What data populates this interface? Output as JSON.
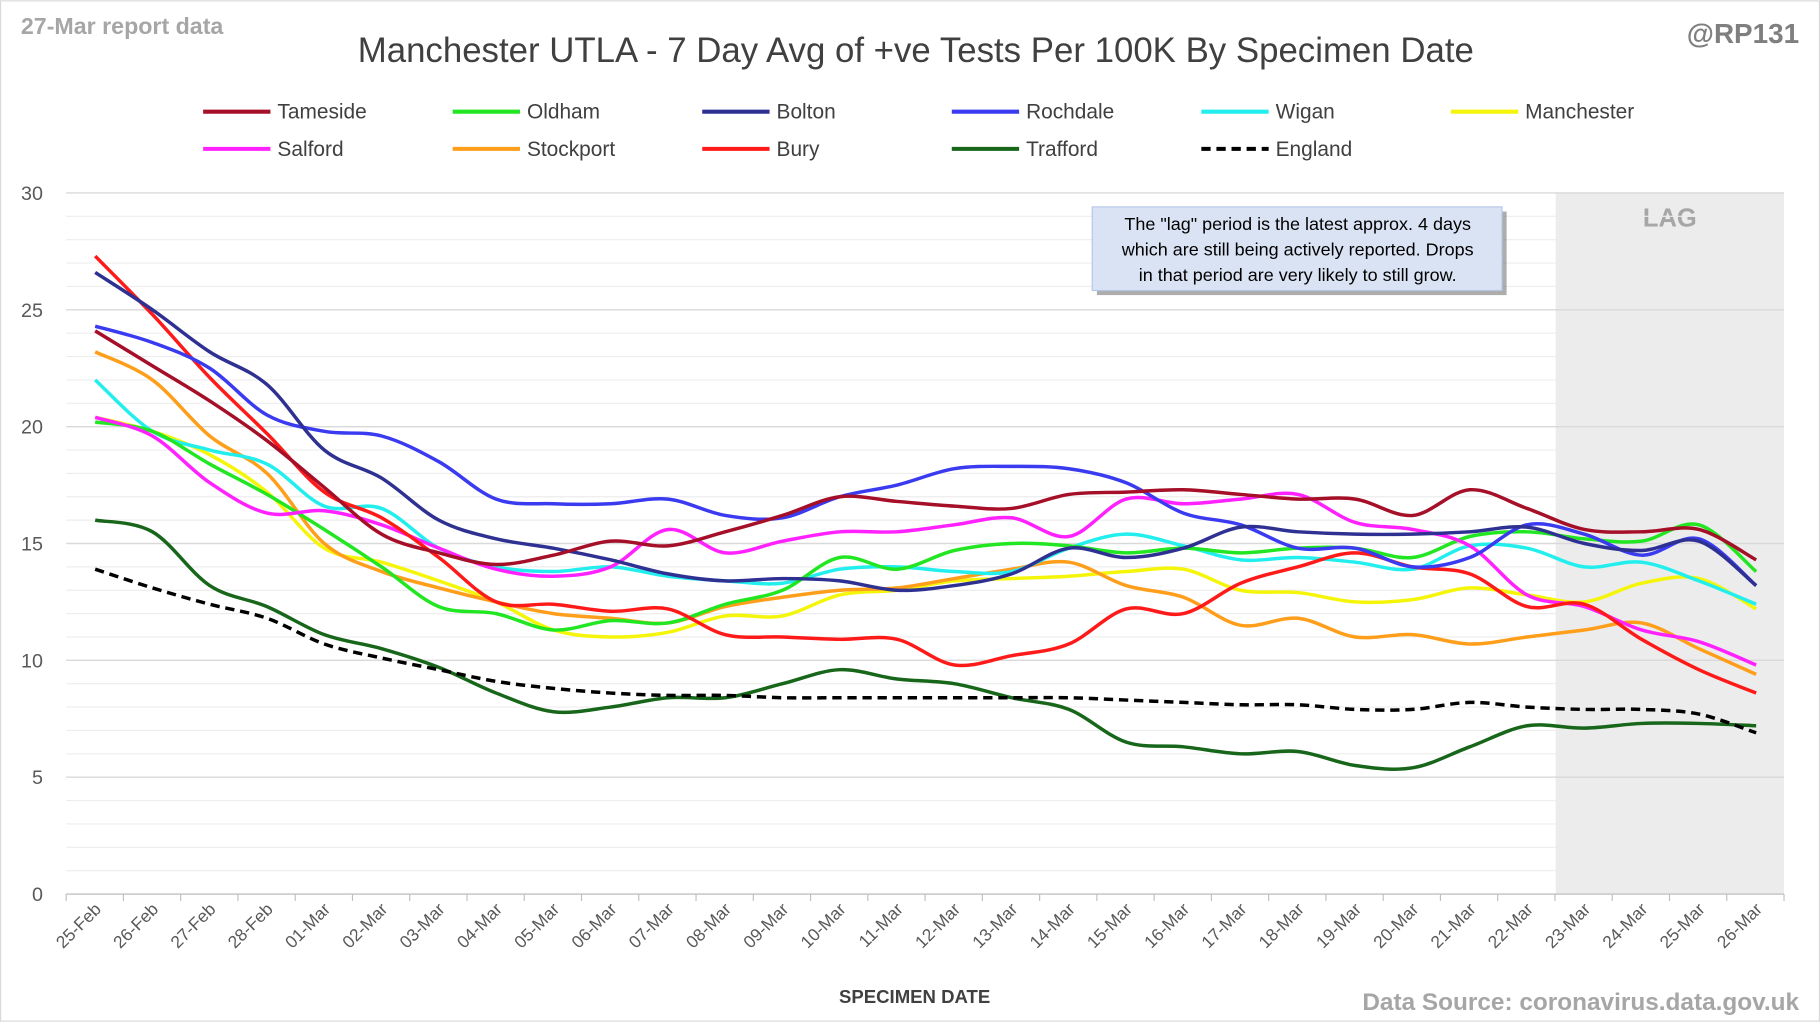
{
  "header": {
    "report_label": "27-Mar report data",
    "handle": "@RP131",
    "source": "Data Source: coronavirus.data.gov.uk"
  },
  "annotation": {
    "lines": [
      "The \"lag\" period is the latest approx. 4 days",
      "which are still being actively reported.  Drops",
      "in that period are very likely to still grow."
    ],
    "lag_label": "LAG"
  },
  "chart_data": {
    "type": "line",
    "title": "Manchester UTLA - 7 Day Avg of +ve Tests Per 100K By Specimen Date",
    "xlabel": "SPECIMEN DATE",
    "ylabel": "",
    "ylim": [
      0,
      30
    ],
    "yticks": [
      0,
      5,
      10,
      15,
      20,
      25,
      30
    ],
    "grid": true,
    "legend_position": "top",
    "lag_period_start": "23-Mar",
    "categories": [
      "25-Feb",
      "26-Feb",
      "27-Feb",
      "28-Feb",
      "01-Mar",
      "02-Mar",
      "03-Mar",
      "04-Mar",
      "05-Mar",
      "06-Mar",
      "07-Mar",
      "08-Mar",
      "09-Mar",
      "10-Mar",
      "11-Mar",
      "12-Mar",
      "13-Mar",
      "14-Mar",
      "15-Mar",
      "16-Mar",
      "17-Mar",
      "18-Mar",
      "19-Mar",
      "20-Mar",
      "21-Mar",
      "22-Mar",
      "23-Mar",
      "24-Mar",
      "25-Mar",
      "26-Mar"
    ],
    "series": [
      {
        "name": "Tameside",
        "color": "#a50f28",
        "values": [
          24.1,
          22.6,
          21.1,
          19.4,
          17.4,
          15.4,
          14.6,
          14.1,
          14.5,
          15.1,
          14.9,
          15.5,
          16.2,
          17.0,
          16.8,
          16.6,
          16.5,
          17.1,
          17.2,
          17.3,
          17.1,
          16.9,
          16.9,
          16.2,
          17.3,
          16.5,
          15.6,
          15.5,
          15.6,
          14.3
        ]
      },
      {
        "name": "Oldham",
        "color": "#22e622",
        "values": [
          20.2,
          19.8,
          18.4,
          17.1,
          15.6,
          14.0,
          12.3,
          12.0,
          11.3,
          11.7,
          11.6,
          12.4,
          13.0,
          14.4,
          13.9,
          14.7,
          15.0,
          14.9,
          14.6,
          14.8,
          14.6,
          14.8,
          14.8,
          14.4,
          15.3,
          15.5,
          15.2,
          15.1,
          15.8,
          13.8
        ]
      },
      {
        "name": "Bolton",
        "color": "#2e3192",
        "values": [
          26.6,
          25.0,
          23.2,
          21.8,
          19.0,
          17.8,
          16.0,
          15.2,
          14.8,
          14.3,
          13.7,
          13.4,
          13.5,
          13.4,
          13.0,
          13.2,
          13.7,
          14.8,
          14.4,
          14.8,
          15.7,
          15.5,
          15.4,
          15.4,
          15.5,
          15.7,
          15.0,
          14.7,
          15.1,
          13.2
        ]
      },
      {
        "name": "Rochdale",
        "color": "#3a3af0",
        "values": [
          24.3,
          23.6,
          22.5,
          20.5,
          19.8,
          19.6,
          18.5,
          16.9,
          16.7,
          16.7,
          16.9,
          16.2,
          16.1,
          17.0,
          17.5,
          18.2,
          18.3,
          18.2,
          17.6,
          16.3,
          15.8,
          14.8,
          14.8,
          14.0,
          14.4,
          15.8,
          15.4,
          14.5,
          15.2,
          13.2
        ]
      },
      {
        "name": "Wigan",
        "color": "#22eeee",
        "values": [
          22.0,
          19.8,
          19.0,
          18.4,
          16.6,
          16.5,
          14.8,
          14.0,
          13.8,
          14.0,
          13.6,
          13.4,
          13.3,
          13.9,
          14.0,
          13.8,
          13.8,
          14.8,
          15.4,
          14.9,
          14.3,
          14.4,
          14.2,
          13.9,
          14.9,
          14.8,
          14.0,
          14.2,
          13.4,
          12.4
        ]
      },
      {
        "name": "Manchester",
        "color": "#f5f50a",
        "values": [
          20.4,
          19.8,
          18.8,
          17.2,
          14.8,
          14.2,
          13.4,
          12.5,
          11.3,
          11.0,
          11.2,
          11.9,
          11.9,
          12.8,
          13.0,
          13.4,
          13.5,
          13.6,
          13.8,
          13.9,
          13.0,
          12.9,
          12.5,
          12.6,
          13.1,
          12.8,
          12.5,
          13.3,
          13.5,
          12.2
        ]
      },
      {
        "name": "Salford",
        "color": "#ff22ff",
        "values": [
          20.4,
          19.6,
          17.6,
          16.3,
          16.4,
          15.8,
          14.8,
          13.9,
          13.6,
          14.0,
          15.6,
          14.6,
          15.1,
          15.5,
          15.5,
          15.8,
          16.1,
          15.3,
          16.9,
          16.7,
          16.9,
          17.1,
          15.9,
          15.6,
          14.9,
          12.8,
          12.3,
          11.3,
          10.8,
          9.8
        ]
      },
      {
        "name": "Stockport",
        "color": "#ff9e1a",
        "values": [
          23.2,
          22.0,
          19.6,
          18.0,
          15.0,
          13.8,
          13.1,
          12.5,
          12.0,
          11.8,
          11.6,
          12.3,
          12.7,
          13.0,
          13.1,
          13.5,
          13.9,
          14.2,
          13.2,
          12.7,
          11.5,
          11.8,
          11.0,
          11.1,
          10.7,
          11.0,
          11.3,
          11.6,
          10.5,
          9.4
        ]
      },
      {
        "name": "Bury",
        "color": "#ff1a1a",
        "values": [
          27.3,
          24.8,
          22.1,
          19.7,
          17.2,
          16.1,
          14.4,
          12.5,
          12.4,
          12.1,
          12.2,
          11.1,
          11.0,
          10.9,
          10.9,
          9.8,
          10.2,
          10.7,
          12.2,
          12.0,
          13.3,
          14.0,
          14.6,
          14.0,
          13.7,
          12.3,
          12.4,
          10.9,
          9.6,
          8.6
        ]
      },
      {
        "name": "Trafford",
        "color": "#17661a",
        "values": [
          16.0,
          15.5,
          13.2,
          12.3,
          11.1,
          10.5,
          9.7,
          8.6,
          7.8,
          8.0,
          8.4,
          8.4,
          9.0,
          9.6,
          9.2,
          9.0,
          8.4,
          7.9,
          6.5,
          6.3,
          6.0,
          6.1,
          5.5,
          5.4,
          6.3,
          7.2,
          7.1,
          7.3,
          7.3,
          7.2
        ]
      },
      {
        "name": "England",
        "color": "#000000",
        "dashed": true,
        "values": [
          13.9,
          13.1,
          12.4,
          11.8,
          10.7,
          10.1,
          9.6,
          9.1,
          8.8,
          8.6,
          8.5,
          8.5,
          8.4,
          8.4,
          8.4,
          8.4,
          8.4,
          8.4,
          8.3,
          8.2,
          8.1,
          8.1,
          7.9,
          7.9,
          8.2,
          8.0,
          7.9,
          7.9,
          7.7,
          6.9
        ]
      }
    ]
  }
}
